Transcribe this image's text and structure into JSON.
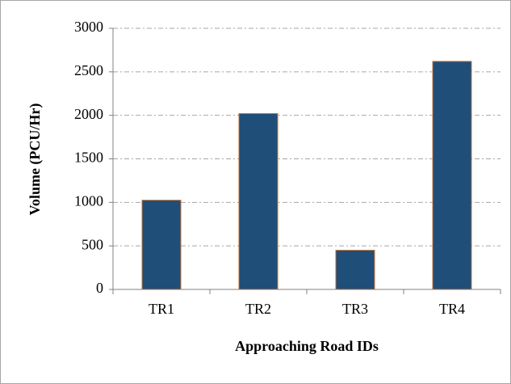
{
  "chart_data": {
    "type": "bar",
    "x_label": "Approaching Road IDs",
    "y_label": "Volume (PCU/Hr)",
    "categories": [
      "TR1",
      "TR2",
      "TR3",
      "TR4"
    ],
    "values": [
      1025,
      2020,
      450,
      2620
    ],
    "color": "#1f4e79",
    "ylim": [
      0,
      3000
    ],
    "yticks": [
      0,
      500,
      1000,
      1500,
      2000,
      2500,
      3000
    ],
    "grid": true
  }
}
